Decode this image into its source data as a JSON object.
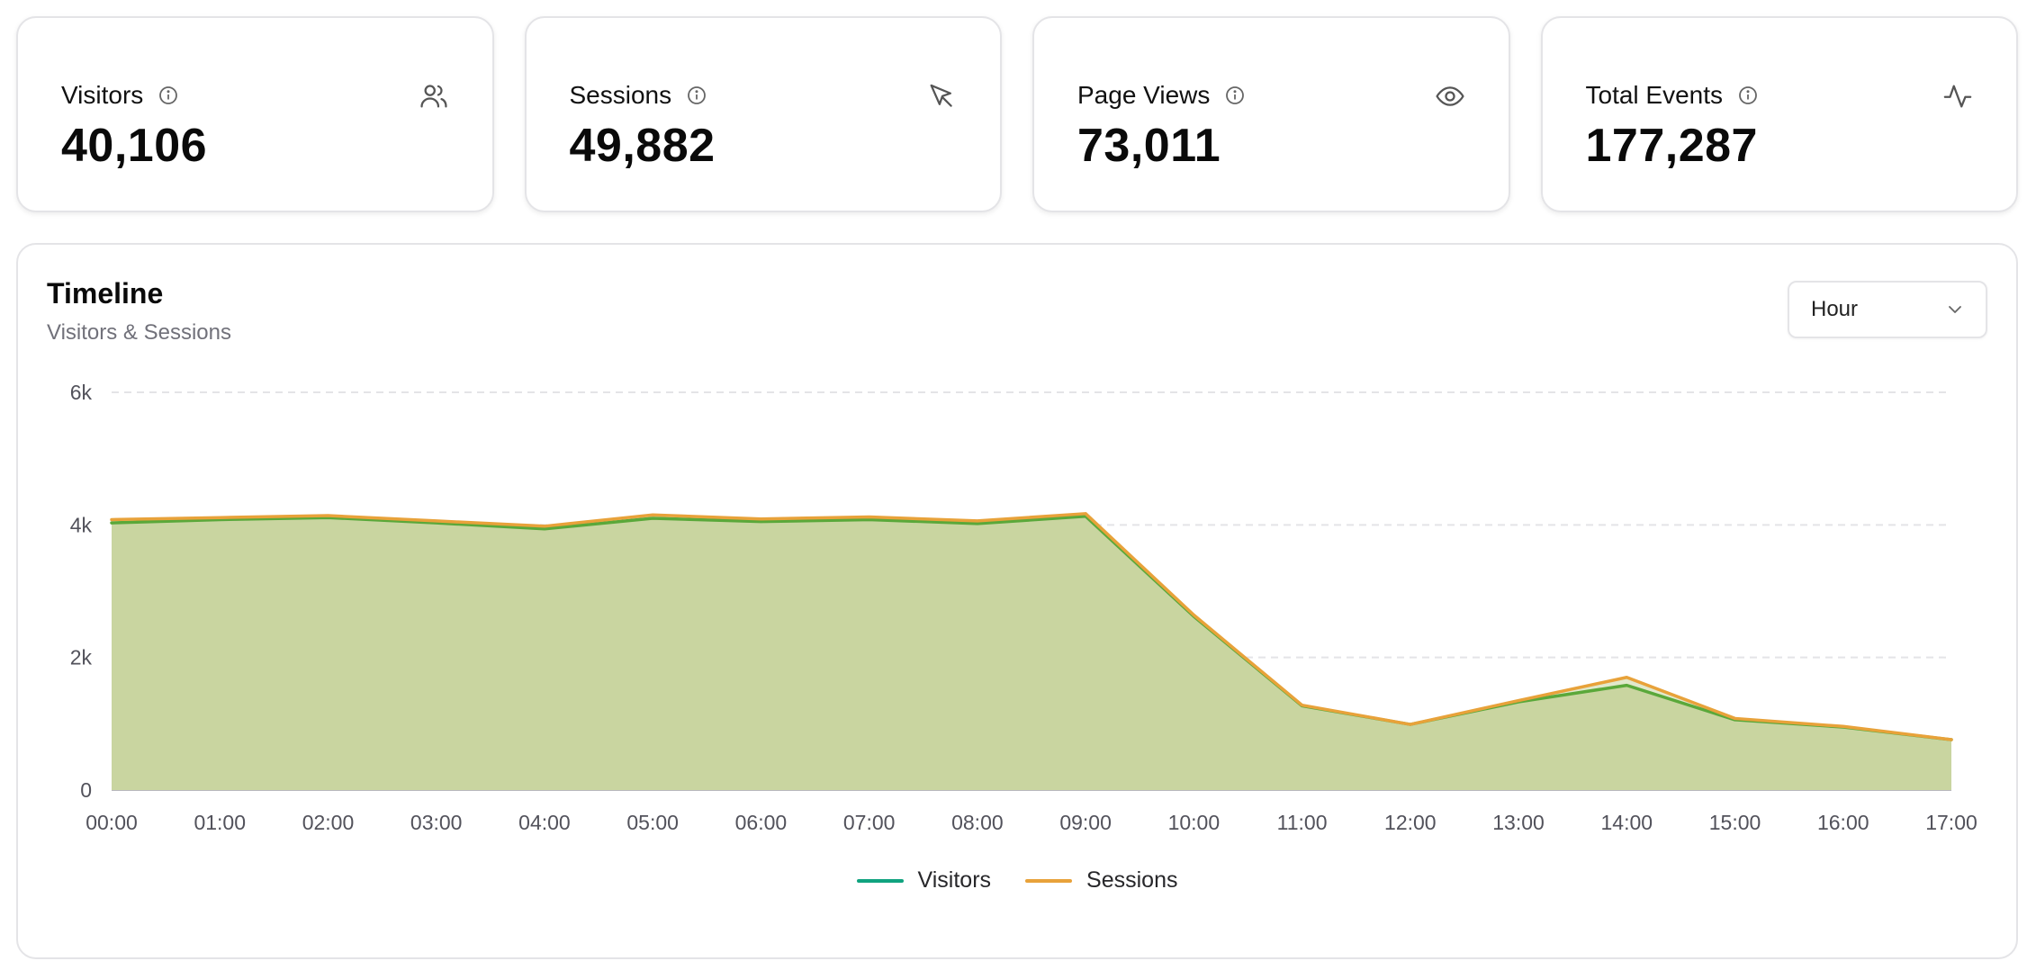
{
  "stats": [
    {
      "label": "Visitors",
      "value": "40,106",
      "icon": "users-icon"
    },
    {
      "label": "Sessions",
      "value": "49,882",
      "icon": "cursor-pointer-icon"
    },
    {
      "label": "Page Views",
      "value": "73,011",
      "icon": "eye-icon"
    },
    {
      "label": "Total Events",
      "value": "177,287",
      "icon": "activity-icon"
    }
  ],
  "timeline": {
    "title": "Timeline",
    "subtitle": "Visitors & Sessions",
    "interval": {
      "selected": "Hour"
    },
    "legend": {
      "visitors": "Visitors",
      "sessions": "Sessions"
    }
  },
  "colors": {
    "visitors": "#10a37f",
    "visitors_line": "#5aa83a",
    "sessions": "#e8a23a",
    "area_fill": "#c9d5a0",
    "grid": "#e4e4e7"
  },
  "chart_data": {
    "type": "area",
    "x": [
      "00:00",
      "01:00",
      "02:00",
      "03:00",
      "04:00",
      "05:00",
      "06:00",
      "07:00",
      "08:00",
      "09:00",
      "10:00",
      "11:00",
      "12:00",
      "13:00",
      "14:00",
      "15:00",
      "16:00",
      "17:00"
    ],
    "y_ticks": [
      "0",
      "2k",
      "4k",
      "6k"
    ],
    "ylim": [
      0,
      6000
    ],
    "grid": true,
    "legend_position": "bottom-center",
    "series": [
      {
        "name": "Visitors",
        "values": [
          4030,
          4080,
          4110,
          4030,
          3940,
          4100,
          4050,
          4080,
          4020,
          4130,
          2620,
          1270,
          990,
          1330,
          1580,
          1060,
          950,
          760
        ]
      },
      {
        "name": "Sessions",
        "values": [
          4080,
          4110,
          4140,
          4060,
          3980,
          4150,
          4090,
          4120,
          4060,
          4170,
          2640,
          1280,
          990,
          1350,
          1700,
          1080,
          960,
          760
        ]
      }
    ]
  }
}
